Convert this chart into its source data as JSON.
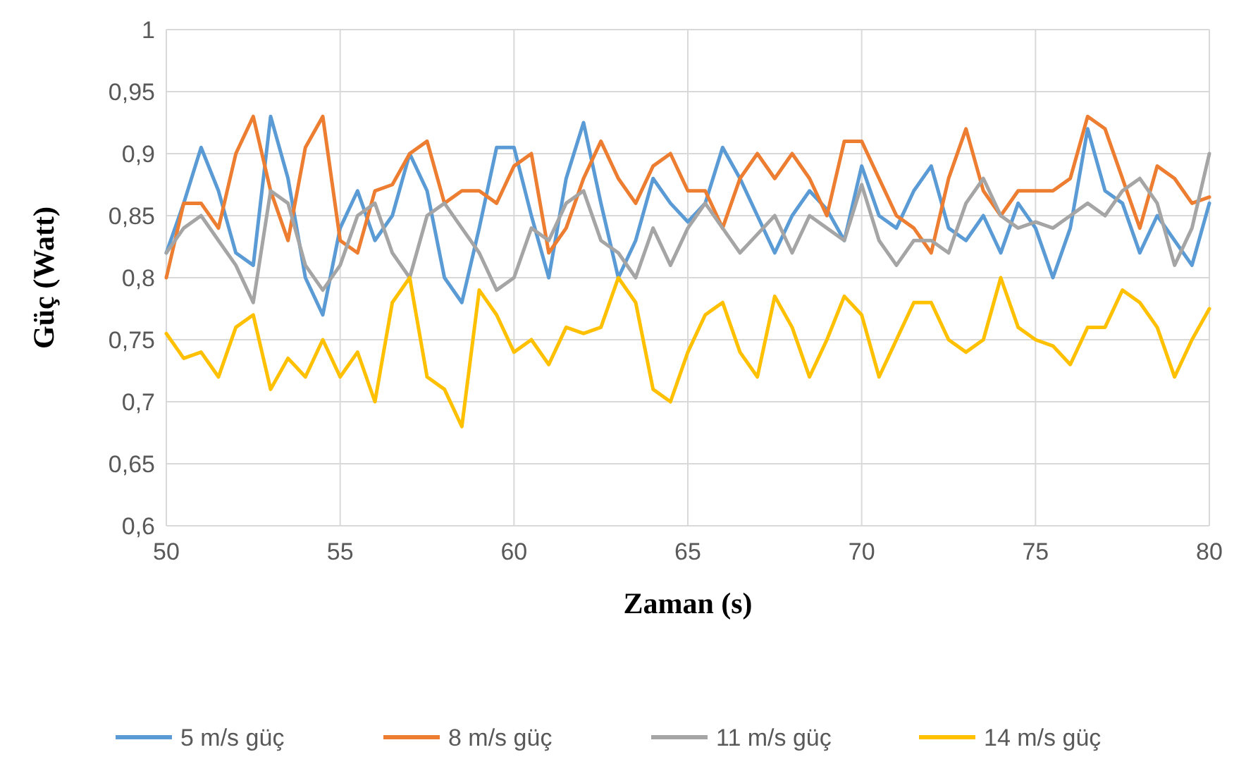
{
  "chart_data": {
    "type": "line",
    "xlabel": "Zaman (s)",
    "ylabel": "Güç (Watt)",
    "x": [
      50,
      50.5,
      51,
      51.5,
      52,
      52.5,
      53,
      53.5,
      54,
      54.5,
      55,
      55.5,
      56,
      56.5,
      57,
      57.5,
      58,
      58.5,
      59,
      59.5,
      60,
      60.5,
      61,
      61.5,
      62,
      62.5,
      63,
      63.5,
      64,
      64.5,
      65,
      65.5,
      66,
      66.5,
      67,
      67.5,
      68,
      68.5,
      69,
      69.5,
      70,
      70.5,
      71,
      71.5,
      72,
      72.5,
      73,
      73.5,
      74,
      74.5,
      75,
      75.5,
      76,
      76.5,
      77,
      77.5,
      78,
      78.5,
      79,
      79.5,
      80
    ],
    "series": [
      {
        "name": "5 m/s güç",
        "color": "#5b9bd5",
        "values": [
          0.82,
          0.86,
          0.905,
          0.87,
          0.82,
          0.81,
          0.93,
          0.88,
          0.8,
          0.77,
          0.84,
          0.87,
          0.83,
          0.85,
          0.9,
          0.87,
          0.8,
          0.78,
          0.84,
          0.905,
          0.905,
          0.85,
          0.8,
          0.88,
          0.925,
          0.86,
          0.8,
          0.83,
          0.88,
          0.86,
          0.845,
          0.86,
          0.905,
          0.88,
          0.85,
          0.82,
          0.85,
          0.87,
          0.855,
          0.83,
          0.89,
          0.85,
          0.84,
          0.87,
          0.89,
          0.84,
          0.83,
          0.85,
          0.82,
          0.86,
          0.84,
          0.8,
          0.84,
          0.92,
          0.87,
          0.86,
          0.82,
          0.85,
          0.83,
          0.81,
          0.86
        ]
      },
      {
        "name": "8 m/s güç",
        "color": "#ed7d31",
        "values": [
          0.8,
          0.86,
          0.86,
          0.84,
          0.9,
          0.93,
          0.87,
          0.83,
          0.905,
          0.93,
          0.83,
          0.82,
          0.87,
          0.875,
          0.9,
          0.91,
          0.86,
          0.87,
          0.87,
          0.86,
          0.89,
          0.9,
          0.82,
          0.84,
          0.88,
          0.91,
          0.88,
          0.86,
          0.89,
          0.9,
          0.87,
          0.87,
          0.84,
          0.88,
          0.9,
          0.88,
          0.9,
          0.88,
          0.85,
          0.91,
          0.91,
          0.88,
          0.85,
          0.84,
          0.82,
          0.88,
          0.92,
          0.87,
          0.85,
          0.87,
          0.87,
          0.87,
          0.88,
          0.93,
          0.92,
          0.88,
          0.84,
          0.89,
          0.88,
          0.86,
          0.865
        ]
      },
      {
        "name": "11 m/s güç",
        "color": "#a5a5a5",
        "values": [
          0.82,
          0.84,
          0.85,
          0.83,
          0.81,
          0.78,
          0.87,
          0.86,
          0.81,
          0.79,
          0.81,
          0.85,
          0.86,
          0.82,
          0.8,
          0.85,
          0.86,
          0.84,
          0.82,
          0.79,
          0.8,
          0.84,
          0.83,
          0.86,
          0.87,
          0.83,
          0.82,
          0.8,
          0.84,
          0.81,
          0.84,
          0.86,
          0.84,
          0.82,
          0.835,
          0.85,
          0.82,
          0.85,
          0.84,
          0.83,
          0.875,
          0.83,
          0.81,
          0.83,
          0.83,
          0.82,
          0.86,
          0.88,
          0.85,
          0.84,
          0.845,
          0.84,
          0.85,
          0.86,
          0.85,
          0.87,
          0.88,
          0.86,
          0.81,
          0.84,
          0.9
        ]
      },
      {
        "name": "14 m/s güç",
        "color": "#ffc000",
        "values": [
          0.755,
          0.735,
          0.74,
          0.72,
          0.76,
          0.77,
          0.71,
          0.735,
          0.72,
          0.75,
          0.72,
          0.74,
          0.7,
          0.78,
          0.8,
          0.72,
          0.71,
          0.68,
          0.79,
          0.77,
          0.74,
          0.75,
          0.73,
          0.76,
          0.755,
          0.76,
          0.8,
          0.78,
          0.71,
          0.7,
          0.74,
          0.77,
          0.78,
          0.74,
          0.72,
          0.785,
          0.76,
          0.72,
          0.75,
          0.785,
          0.77,
          0.72,
          0.75,
          0.78,
          0.78,
          0.75,
          0.74,
          0.75,
          0.8,
          0.76,
          0.75,
          0.745,
          0.73,
          0.76,
          0.76,
          0.79,
          0.78,
          0.76,
          0.72,
          0.75,
          0.775
        ]
      }
    ],
    "xlim": [
      50,
      80
    ],
    "xticks": [
      50,
      55,
      60,
      65,
      70,
      75,
      80
    ],
    "ylim": [
      0.6,
      1
    ],
    "yticks": [
      {
        "value": 0.6,
        "label": "0,6"
      },
      {
        "value": 0.65,
        "label": "0,65"
      },
      {
        "value": 0.7,
        "label": "0,7"
      },
      {
        "value": 0.75,
        "label": "0,75"
      },
      {
        "value": 0.8,
        "label": "0,8"
      },
      {
        "value": 0.85,
        "label": "0,85"
      },
      {
        "value": 0.9,
        "label": "0,9"
      },
      {
        "value": 0.95,
        "label": "0,95"
      },
      {
        "value": 1,
        "label": "1"
      }
    ],
    "grid": true,
    "legend": "bottom",
    "marker": "none",
    "line_style": "solid"
  }
}
